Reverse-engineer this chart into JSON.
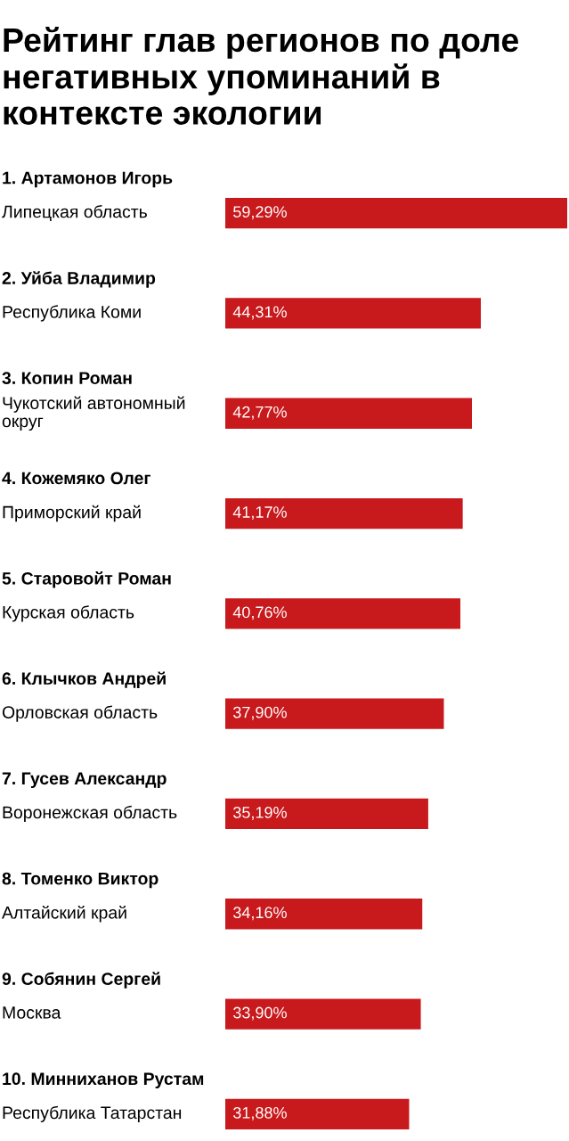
{
  "chart_data": {
    "type": "bar",
    "orientation": "horizontal",
    "title": "Рейтинг глав регионов по доле негативных упоминаний в контексте экологии",
    "categories": [
      "1. Артамонов Игорь\nЛипецкая область",
      "2. Уйба Владимир\nРеспублика Коми",
      "3. Копин Роман\nЧукотский автономный округ",
      "4. Кожемяко Олег\nПриморский край",
      "5. Старовойт Роман\nКурская область",
      "6. Клычков Андрей\nОрловская область",
      "7. Гусев Александр\nВоронежская область",
      "8. Томенко Виктор\nАлтайский край",
      "9. Собянин Сергей\nМосква",
      "10. Минниханов Рустам\nРеспублика Татарстан"
    ],
    "values": [
      59.29,
      44.31,
      42.77,
      41.17,
      40.76,
      37.9,
      35.19,
      34.16,
      33.9,
      31.88
    ],
    "value_labels": [
      "59,29%",
      "44,31%",
      "42,77%",
      "41,17%",
      "40,76%",
      "37,90%",
      "35,19%",
      "34,16%",
      "33,90%",
      "31,88%"
    ],
    "color": "#c8191c",
    "tick_labels": false
  }
}
